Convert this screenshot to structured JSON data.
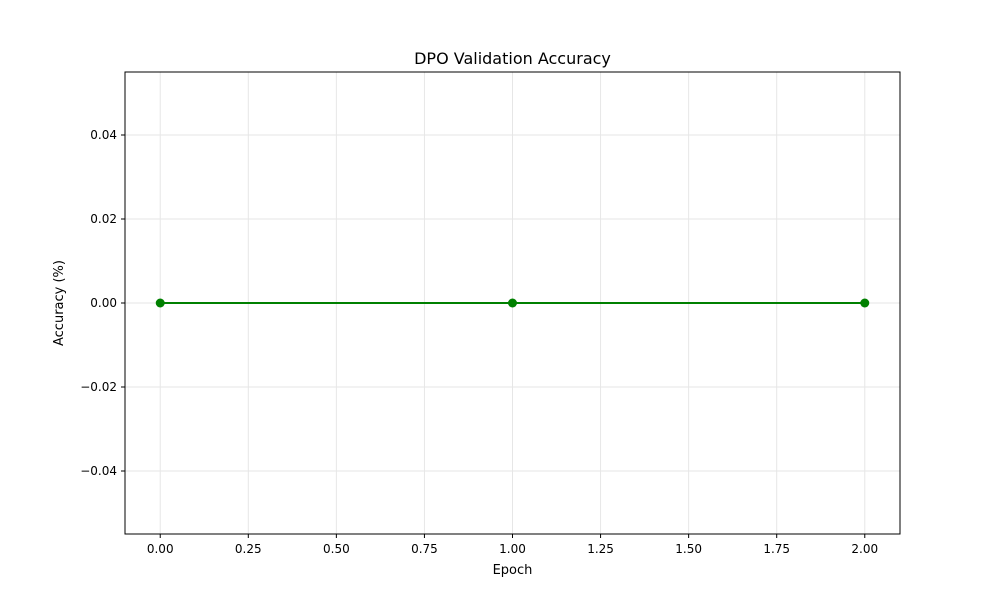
{
  "chart_data": {
    "type": "line",
    "title": "DPO Validation Accuracy",
    "xlabel": "Epoch",
    "ylabel": "Accuracy (%)",
    "x": [
      0,
      1,
      2
    ],
    "series": [
      {
        "values": [
          0.0,
          0.0,
          0.0
        ],
        "color": "#008000",
        "marker": "circle"
      }
    ],
    "xlim": [
      -0.1,
      2.1
    ],
    "ylim": [
      -0.055,
      0.055
    ],
    "xticks": [
      0.0,
      0.25,
      0.5,
      0.75,
      1.0,
      1.25,
      1.5,
      1.75,
      2.0
    ],
    "xtick_labels": [
      "0.00",
      "0.25",
      "0.50",
      "0.75",
      "1.00",
      "1.25",
      "1.50",
      "1.75",
      "2.00"
    ],
    "yticks": [
      -0.04,
      -0.02,
      0.0,
      0.02,
      0.04
    ],
    "ytick_labels": [
      "−0.04",
      "−0.02",
      "0.00",
      "0.02",
      "0.04"
    ],
    "grid": true,
    "grid_color": "#e6e6e6"
  }
}
